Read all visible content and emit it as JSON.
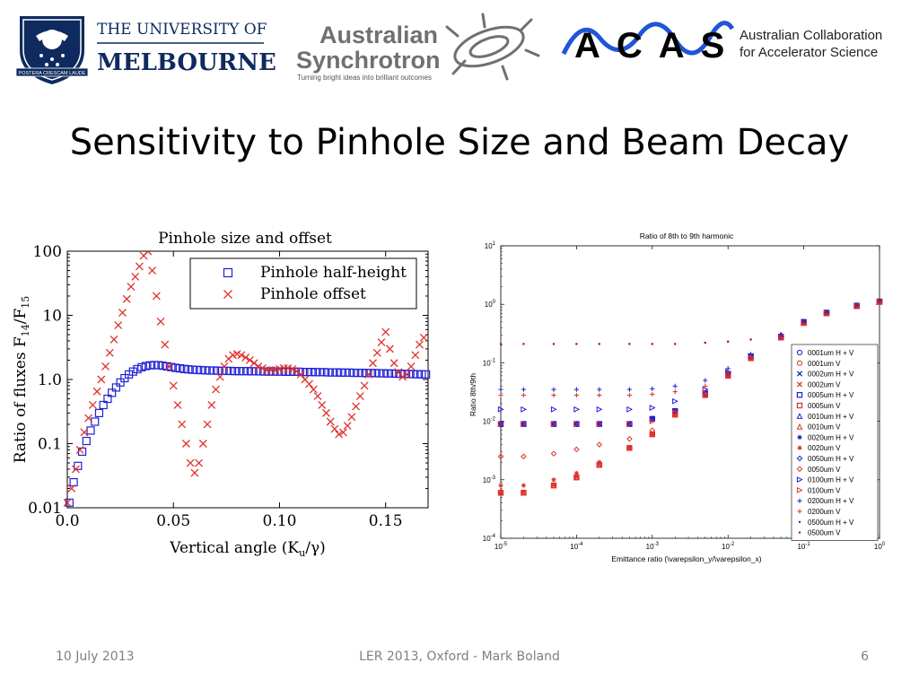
{
  "header": {
    "unimelb_line1": "THE UNIVERSITY OF",
    "unimelb_line2": "MELBOURNE",
    "unimelb_crest_motto": "POSTERA CRESCAM LAUDE",
    "synchrotron_line1": "Australian",
    "synchrotron_line2": "Synchrotron",
    "synchrotron_tagline": "Turning bright ideas into brilliant outcomes",
    "acas_logo": "ACAS",
    "acas_line1": "Australian Collaboration",
    "acas_line2": "for Accelerator Science"
  },
  "slide": {
    "title": "Sensitivity to Pinhole Size and Beam Decay"
  },
  "footer": {
    "date": "10 July 2013",
    "center": "LER 2013, Oxford - Mark Boland",
    "page": "6"
  },
  "colors": {
    "blue": "#1f1fd6",
    "red": "#e0302a",
    "dark_red": "#b01818",
    "navy": "#0f2a5e"
  },
  "chart_data": [
    {
      "type": "scatter",
      "title": "Pinhole size and offset",
      "xlabel": "Vertical angle (K",
      "xlabel_sub": "u",
      "xlabel_tail": "/γ)",
      "ylabel": "Ratio of fluxes F",
      "ylabel_sub1": "14",
      "ylabel_mid": "/F",
      "ylabel_sub2": "15",
      "xlim": [
        0,
        0.17
      ],
      "ylim": [
        0.01,
        100
      ],
      "yscale": "log",
      "xticks": [
        "0.0",
        "0.05",
        "0.10",
        "0.15"
      ],
      "xtick_values": [
        0,
        0.05,
        0.1,
        0.15
      ],
      "yticks": [
        "0.01",
        "0.1",
        "1.0",
        "10",
        "100"
      ],
      "ytick_values": [
        0.01,
        0.1,
        1,
        10,
        100
      ],
      "legend_position": "top-right",
      "series": [
        {
          "name": "Pinhole half-height",
          "color": "#1f1fd6",
          "marker": "square",
          "x": [
            0.001,
            0.003,
            0.005,
            0.007,
            0.009,
            0.011,
            0.013,
            0.015,
            0.017,
            0.019,
            0.021,
            0.023,
            0.025,
            0.027,
            0.029,
            0.031,
            0.033,
            0.035,
            0.037,
            0.039,
            0.041,
            0.043,
            0.045,
            0.047,
            0.049,
            0.051,
            0.053,
            0.055,
            0.057,
            0.059,
            0.061,
            0.063,
            0.065,
            0.067,
            0.069,
            0.071,
            0.073,
            0.075,
            0.077,
            0.079,
            0.081,
            0.083,
            0.085,
            0.087,
            0.089,
            0.091,
            0.093,
            0.095,
            0.097,
            0.099,
            0.101,
            0.103,
            0.105,
            0.107,
            0.109,
            0.111,
            0.113,
            0.115,
            0.117,
            0.119,
            0.121,
            0.123,
            0.125,
            0.127,
            0.129,
            0.131,
            0.133,
            0.135,
            0.137,
            0.139,
            0.141,
            0.143,
            0.145,
            0.147,
            0.149,
            0.151,
            0.153,
            0.155,
            0.157,
            0.159,
            0.161,
            0.163,
            0.165,
            0.167,
            0.169
          ],
          "y": [
            0.012,
            0.025,
            0.045,
            0.075,
            0.11,
            0.16,
            0.22,
            0.3,
            0.4,
            0.5,
            0.62,
            0.75,
            0.9,
            1.05,
            1.2,
            1.33,
            1.45,
            1.55,
            1.62,
            1.66,
            1.68,
            1.67,
            1.64,
            1.6,
            1.56,
            1.52,
            1.49,
            1.46,
            1.44,
            1.42,
            1.41,
            1.4,
            1.39,
            1.38,
            1.38,
            1.37,
            1.37,
            1.36,
            1.36,
            1.35,
            1.35,
            1.35,
            1.35,
            1.34,
            1.34,
            1.34,
            1.33,
            1.33,
            1.33,
            1.33,
            1.33,
            1.32,
            1.32,
            1.32,
            1.32,
            1.31,
            1.31,
            1.31,
            1.3,
            1.3,
            1.3,
            1.29,
            1.29,
            1.29,
            1.28,
            1.28,
            1.28,
            1.27,
            1.27,
            1.27,
            1.26,
            1.26,
            1.26,
            1.25,
            1.25,
            1.24,
            1.24,
            1.23,
            1.23,
            1.22,
            1.22,
            1.21,
            1.21,
            1.2,
            1.2
          ]
        },
        {
          "name": "Pinhole offset",
          "color": "#e0302a",
          "marker": "x",
          "x": [
            0.0,
            0.002,
            0.004,
            0.006,
            0.008,
            0.01,
            0.012,
            0.014,
            0.016,
            0.018,
            0.02,
            0.022,
            0.024,
            0.026,
            0.028,
            0.03,
            0.032,
            0.034,
            0.036,
            0.038,
            0.04,
            0.042,
            0.044,
            0.046,
            0.048,
            0.05,
            0.052,
            0.054,
            0.056,
            0.058,
            0.06,
            0.062,
            0.064,
            0.066,
            0.068,
            0.07,
            0.072,
            0.074,
            0.076,
            0.078,
            0.08,
            0.082,
            0.084,
            0.086,
            0.088,
            0.09,
            0.092,
            0.094,
            0.096,
            0.098,
            0.1,
            0.102,
            0.104,
            0.106,
            0.108,
            0.11,
            0.112,
            0.114,
            0.116,
            0.118,
            0.12,
            0.122,
            0.124,
            0.126,
            0.128,
            0.13,
            0.132,
            0.134,
            0.136,
            0.138,
            0.14,
            0.142,
            0.144,
            0.146,
            0.148,
            0.15,
            0.152,
            0.154,
            0.156,
            0.158,
            0.16,
            0.162,
            0.164,
            0.166,
            0.168
          ],
          "y": [
            0.012,
            0.02,
            0.04,
            0.08,
            0.15,
            0.25,
            0.4,
            0.65,
            1.0,
            1.6,
            2.6,
            4.2,
            7.0,
            11.0,
            18.0,
            28.0,
            40.0,
            58.0,
            85.0,
            100.0,
            50.0,
            20.0,
            8.0,
            3.5,
            1.6,
            0.8,
            0.4,
            0.2,
            0.1,
            0.05,
            0.035,
            0.05,
            0.1,
            0.2,
            0.4,
            0.7,
            1.1,
            1.6,
            2.1,
            2.4,
            2.5,
            2.4,
            2.2,
            2.0,
            1.8,
            1.6,
            1.5,
            1.4,
            1.4,
            1.4,
            1.45,
            1.5,
            1.5,
            1.45,
            1.35,
            1.2,
            1.0,
            0.85,
            0.7,
            0.55,
            0.4,
            0.3,
            0.22,
            0.17,
            0.14,
            0.15,
            0.19,
            0.26,
            0.38,
            0.55,
            0.8,
            1.2,
            1.8,
            2.6,
            3.8,
            5.5,
            3.0,
            1.8,
            1.3,
            1.1,
            1.2,
            1.6,
            2.4,
            3.5,
            4.5
          ]
        }
      ]
    },
    {
      "type": "scatter",
      "title": "Ratio of 8th to 9th harmonic",
      "xlabel": "Emittance ratio (\\varepsilon_y/\\varepsilon_x)",
      "ylabel": "Ratio 8th/9th",
      "xscale": "log",
      "yscale": "log",
      "xlim": [
        1e-05,
        1
      ],
      "ylim": [
        0.0001,
        10
      ],
      "xtick_values": [
        1e-05,
        0.0001,
        0.001,
        0.01,
        0.1,
        1
      ],
      "ytick_values": [
        0.0001,
        0.001,
        0.01,
        0.1,
        1,
        10
      ],
      "tick_base": "10",
      "xtick_exponents": [
        "-5",
        "-4",
        "-3",
        "-2",
        "-1",
        "0"
      ],
      "ytick_exponents": [
        "-4",
        "-3",
        "-2",
        "-1",
        "0",
        "1"
      ],
      "legend_position": "bottom-right",
      "x": [
        1e-05,
        2e-05,
        5e-05,
        0.0001,
        0.0002,
        0.0005,
        0.001,
        0.002,
        0.005,
        0.01,
        0.02,
        0.05,
        0.1,
        0.2,
        0.5,
        1
      ],
      "series": [
        {
          "name": "0001um H + V",
          "color": "#1f1fd6",
          "marker": "circle",
          "y": [
            0.009,
            0.009,
            0.009,
            0.009,
            0.009,
            0.009,
            0.011,
            0.015,
            0.03,
            0.065,
            0.13,
            0.28,
            0.5,
            0.72,
            0.95,
            1.12
          ]
        },
        {
          "name": "0001um V",
          "color": "#e0302a",
          "marker": "circle",
          "y": [
            0.0006,
            0.0006,
            0.0008,
            0.0011,
            0.0018,
            0.0035,
            0.006,
            0.013,
            0.028,
            0.06,
            0.12,
            0.27,
            0.48,
            0.7,
            0.93,
            1.1
          ]
        },
        {
          "name": "0002um H + V",
          "color": "#1f1fd6",
          "marker": "x",
          "y": [
            0.009,
            0.009,
            0.009,
            0.009,
            0.009,
            0.009,
            0.011,
            0.015,
            0.03,
            0.065,
            0.13,
            0.28,
            0.5,
            0.72,
            0.95,
            1.12
          ]
        },
        {
          "name": "0002um V",
          "color": "#e0302a",
          "marker": "x",
          "y": [
            0.0006,
            0.0006,
            0.0008,
            0.0011,
            0.0018,
            0.0035,
            0.006,
            0.013,
            0.028,
            0.06,
            0.12,
            0.27,
            0.48,
            0.7,
            0.93,
            1.1
          ]
        },
        {
          "name": "0005um H + V",
          "color": "#1f1fd6",
          "marker": "square",
          "y": [
            0.009,
            0.009,
            0.009,
            0.009,
            0.009,
            0.009,
            0.011,
            0.015,
            0.03,
            0.065,
            0.13,
            0.28,
            0.5,
            0.72,
            0.95,
            1.12
          ]
        },
        {
          "name": "0005um V",
          "color": "#e0302a",
          "marker": "square",
          "y": [
            0.0006,
            0.0006,
            0.0008,
            0.0011,
            0.0018,
            0.0035,
            0.006,
            0.013,
            0.028,
            0.06,
            0.12,
            0.27,
            0.48,
            0.7,
            0.93,
            1.1
          ]
        },
        {
          "name": "0010um H + V",
          "color": "#1f1fd6",
          "marker": "triangle-up",
          "y": [
            0.009,
            0.009,
            0.009,
            0.009,
            0.009,
            0.009,
            0.011,
            0.015,
            0.03,
            0.065,
            0.13,
            0.28,
            0.5,
            0.72,
            0.95,
            1.12
          ]
        },
        {
          "name": "0010um V",
          "color": "#e0302a",
          "marker": "triangle-up",
          "y": [
            0.0006,
            0.0006,
            0.0008,
            0.0011,
            0.0018,
            0.0035,
            0.006,
            0.013,
            0.028,
            0.06,
            0.12,
            0.27,
            0.48,
            0.7,
            0.93,
            1.1
          ]
        },
        {
          "name": "0020um H + V",
          "color": "#1f1fd6",
          "marker": "star",
          "y": [
            0.009,
            0.009,
            0.009,
            0.009,
            0.009,
            0.009,
            0.011,
            0.015,
            0.03,
            0.065,
            0.13,
            0.28,
            0.5,
            0.72,
            0.95,
            1.12
          ]
        },
        {
          "name": "0020um V",
          "color": "#e0302a",
          "marker": "star",
          "y": [
            0.0008,
            0.0008,
            0.001,
            0.0013,
            0.002,
            0.0036,
            0.006,
            0.013,
            0.028,
            0.06,
            0.12,
            0.27,
            0.48,
            0.7,
            0.93,
            1.1
          ]
        },
        {
          "name": "0050um H + V",
          "color": "#1f1fd6",
          "marker": "diamond",
          "y": [
            0.009,
            0.009,
            0.009,
            0.009,
            0.009,
            0.009,
            0.011,
            0.015,
            0.03,
            0.065,
            0.13,
            0.28,
            0.5,
            0.72,
            0.95,
            1.12
          ]
        },
        {
          "name": "0050um V",
          "color": "#e0302a",
          "marker": "diamond",
          "y": [
            0.0025,
            0.0025,
            0.0028,
            0.0033,
            0.004,
            0.005,
            0.007,
            0.014,
            0.028,
            0.06,
            0.12,
            0.27,
            0.48,
            0.7,
            0.93,
            1.1
          ]
        },
        {
          "name": "0100um H + V",
          "color": "#1f1fd6",
          "marker": "triangle-right",
          "y": [
            0.016,
            0.016,
            0.016,
            0.016,
            0.016,
            0.016,
            0.017,
            0.022,
            0.035,
            0.07,
            0.13,
            0.28,
            0.5,
            0.72,
            0.95,
            1.12
          ]
        },
        {
          "name": "0100um V",
          "color": "#e0302a",
          "marker": "triangle-right",
          "y": [
            0.009,
            0.009,
            0.009,
            0.009,
            0.009,
            0.009,
            0.01,
            0.014,
            0.03,
            0.06,
            0.12,
            0.27,
            0.48,
            0.7,
            0.93,
            1.1
          ]
        },
        {
          "name": "0200um H + V",
          "color": "#1f1fd6",
          "marker": "plus",
          "y": [
            0.035,
            0.035,
            0.035,
            0.035,
            0.035,
            0.035,
            0.036,
            0.04,
            0.05,
            0.08,
            0.14,
            0.28,
            0.5,
            0.72,
            0.95,
            1.12
          ]
        },
        {
          "name": "0200um V",
          "color": "#e0302a",
          "marker": "plus",
          "y": [
            0.028,
            0.028,
            0.028,
            0.028,
            0.028,
            0.028,
            0.029,
            0.032,
            0.04,
            0.07,
            0.13,
            0.27,
            0.48,
            0.7,
            0.93,
            1.1
          ]
        },
        {
          "name": "0500um H + V",
          "color": "#1f1fd6",
          "marker": "dot",
          "y": [
            0.21,
            0.21,
            0.21,
            0.21,
            0.21,
            0.21,
            0.21,
            0.21,
            0.22,
            0.23,
            0.25,
            0.32,
            0.5,
            0.72,
            0.95,
            1.12
          ]
        },
        {
          "name": "0500um V",
          "color": "#b01818",
          "marker": "dot",
          "y": [
            0.21,
            0.21,
            0.21,
            0.21,
            0.21,
            0.21,
            0.21,
            0.21,
            0.22,
            0.23,
            0.25,
            0.3,
            0.48,
            0.7,
            0.93,
            1.1
          ]
        }
      ]
    }
  ]
}
